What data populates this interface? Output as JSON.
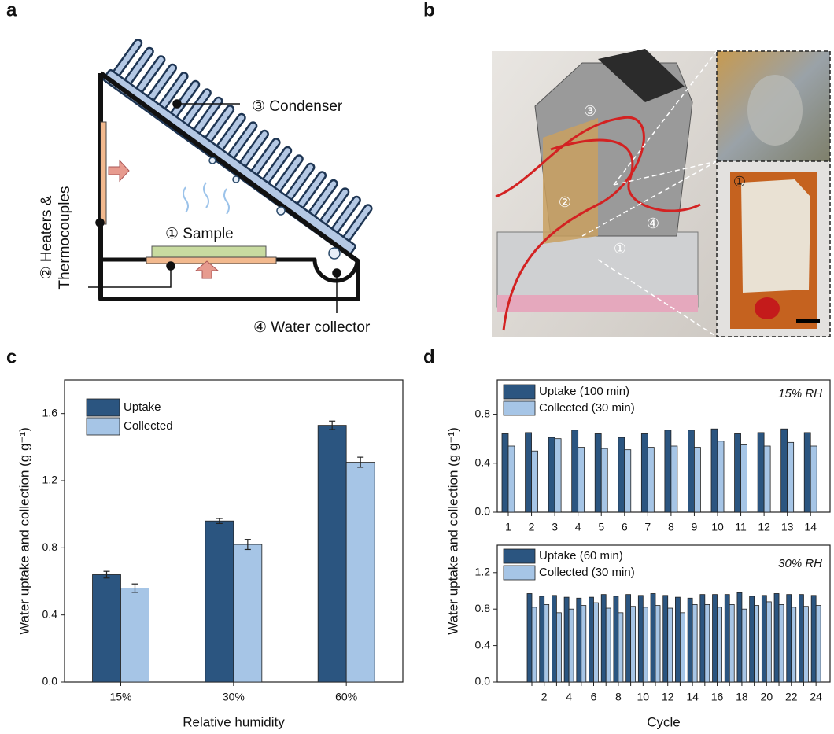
{
  "panel_labels": [
    "a",
    "b",
    "c",
    "d"
  ],
  "diagram": {
    "condenser": "③ Condenser",
    "sample": "① Sample",
    "heaters": [
      "② Heaters &",
      "Thermocouples"
    ],
    "collector": "④ Water collector"
  },
  "photo": {
    "labels": [
      "③",
      "②",
      "④",
      "①",
      "①"
    ]
  },
  "chart_data": [
    {
      "type": "bar",
      "y_label": "Water uptake and collection (g g⁻¹)",
      "x_label": "Relative humidity",
      "categories": [
        "15%",
        "30%",
        "60%"
      ],
      "series": [
        {
          "name": "Uptake",
          "color": "#2b5580",
          "values": [
            0.64,
            0.96,
            1.53
          ],
          "errors": [
            0.02,
            0.015,
            0.025
          ]
        },
        {
          "name": "Collected",
          "color": "#a6c5e6",
          "values": [
            0.56,
            0.82,
            1.31
          ],
          "errors": [
            0.025,
            0.03,
            0.03
          ]
        }
      ],
      "ylim": [
        0,
        1.8
      ],
      "yticks": [
        {
          "value": 0,
          "label": "0.0"
        },
        0.4,
        0.8,
        1.2,
        1.6
      ]
    },
    {
      "type": "bar",
      "y_label": "Water uptake and collection (g g⁻¹)",
      "annotation": "15% RH",
      "categories": [
        "1",
        "2",
        "3",
        "4",
        "5",
        "6",
        "7",
        "8",
        "9",
        "10",
        "11",
        "12",
        "13",
        "14"
      ],
      "series": [
        {
          "name": "Uptake (100 min)",
          "color": "#2b5580",
          "values": [
            0.64,
            0.65,
            0.61,
            0.67,
            0.64,
            0.61,
            0.64,
            0.67,
            0.67,
            0.68,
            0.64,
            0.65,
            0.68,
            0.65
          ]
        },
        {
          "name": "Collected (30 min)",
          "color": "#a6c5e6",
          "values": [
            0.54,
            0.5,
            0.6,
            0.53,
            0.52,
            0.51,
            0.53,
            0.54,
            0.53,
            0.58,
            0.55,
            0.54,
            0.57,
            0.54
          ]
        }
      ],
      "ylim": [
        0,
        1.08
      ],
      "yticks": [
        {
          "value": 0,
          "label": "0.0"
        },
        0.4,
        0.8
      ]
    },
    {
      "type": "bar",
      "annotation": "30% RH",
      "x_label": "Cycle",
      "categories": [
        null,
        "2",
        null,
        "4",
        null,
        "6",
        null,
        "8",
        null,
        "10",
        null,
        "12",
        null,
        "14",
        null,
        "16",
        null,
        "18",
        null,
        "20",
        null,
        "22",
        null,
        "24"
      ],
      "series": [
        {
          "name": "Uptake (60 min)",
          "color": "#2b5580",
          "values": [
            0.97,
            0.94,
            0.95,
            0.93,
            0.92,
            0.93,
            0.96,
            0.94,
            0.96,
            0.95,
            0.97,
            0.95,
            0.93,
            0.92,
            0.96,
            0.96,
            0.96,
            0.98,
            0.94,
            0.95,
            0.97,
            0.96,
            0.96,
            0.95
          ]
        },
        {
          "name": "Collected (30 min)",
          "color": "#a6c5e6",
          "values": [
            0.82,
            0.85,
            0.76,
            0.8,
            0.84,
            0.87,
            0.81,
            0.76,
            0.83,
            0.82,
            0.84,
            0.81,
            0.76,
            0.85,
            0.85,
            0.82,
            0.85,
            0.8,
            0.84,
            0.88,
            0.85,
            0.82,
            0.83,
            0.84
          ]
        }
      ],
      "ylim": [
        0,
        1.5
      ],
      "yticks": [
        {
          "value": 0,
          "label": "0.0"
        },
        0.4,
        0.8,
        1.2
      ]
    }
  ]
}
